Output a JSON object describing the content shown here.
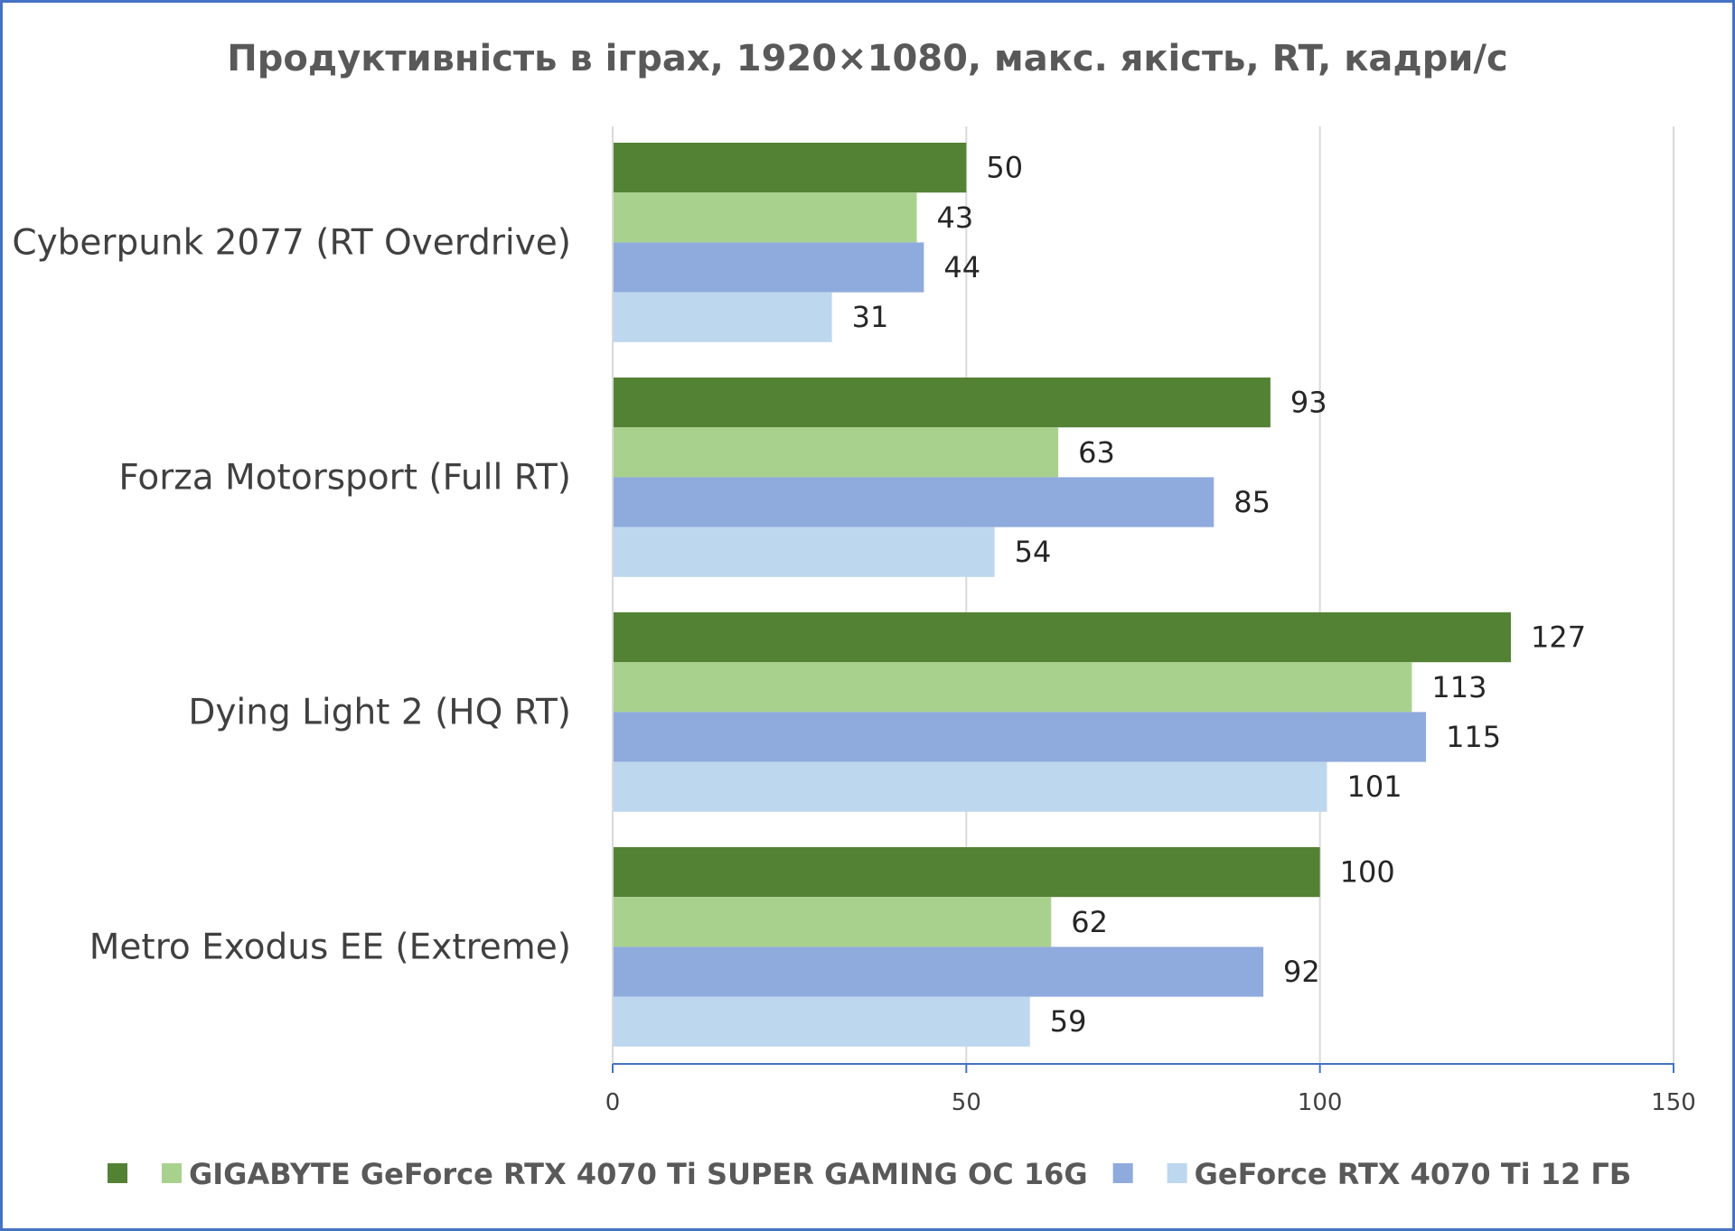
{
  "chart_data": {
    "type": "bar",
    "orientation": "horizontal",
    "title": "Продуктивність в іграх, 1920×1080, макс. якість, RT, кадри/с",
    "categories": [
      "Cyberpunk 2077 (RT Overdrive)",
      "Forza Motorsport (Full RT)",
      "Dying Light 2 (HQ RT)",
      "Metro Exodus EE (Extreme)"
    ],
    "series": [
      {
        "values": [
          50,
          93,
          127,
          100
        ],
        "color": "#548235"
      },
      {
        "values": [
          43,
          63,
          113,
          62
        ],
        "color": "#a9d18e"
      },
      {
        "values": [
          44,
          85,
          115,
          92
        ],
        "color": "#8faadc"
      },
      {
        "values": [
          31,
          54,
          101,
          59
        ],
        "color": "#bdd7ee"
      }
    ],
    "xlim": [
      0,
      150
    ],
    "x_ticks": [
      0,
      50,
      100,
      150
    ],
    "x_tick_labels": [
      "0",
      "50",
      "100",
      "150"
    ],
    "grid": true,
    "legend": {
      "placement": "bottom",
      "entries": [
        {
          "color": "#548235",
          "text": ""
        },
        {
          "color": "#a9d18e",
          "text": "GIGABYTE GeForce RTX 4070 Ti SUPER GAMING OC 16G"
        },
        {
          "color": "#8faadc",
          "text": ""
        },
        {
          "color": "#bdd7ee",
          "text": "GeForce RTX 4070 Ti 12 ГБ"
        }
      ]
    },
    "colors": {
      "frame_border": "#4472c4",
      "axis_line": "#4472c4",
      "gridline": "#d9d9d9"
    }
  }
}
